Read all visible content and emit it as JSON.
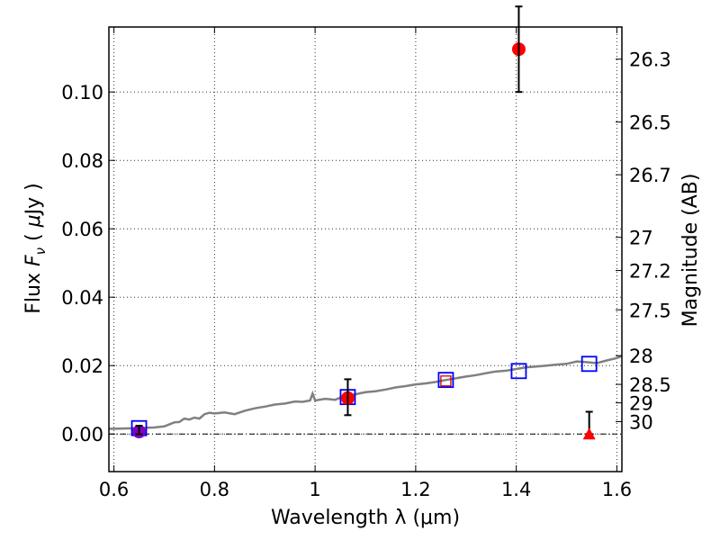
{
  "chart_data": {
    "type": "scatter",
    "title": "",
    "xlabel": "Wavelength  λ (μm)",
    "ylabel": "Flux  F_ν  ( μJy )",
    "ylabel_parts": [
      "Flux ",
      "F",
      "ν",
      " ( ",
      "μ",
      "Jy )"
    ],
    "y2label": "Magnitude (AB)",
    "xlim": [
      0.59,
      1.61
    ],
    "ylim": [
      -0.011,
      0.119
    ],
    "grid": true,
    "x_ticks": [
      {
        "value": 0.6,
        "label": "0.6"
      },
      {
        "value": 0.8,
        "label": "0.8"
      },
      {
        "value": 1.0,
        "label": "1"
      },
      {
        "value": 1.2,
        "label": "1.2"
      },
      {
        "value": 1.4,
        "label": "1.4"
      },
      {
        "value": 1.6,
        "label": "1.6"
      }
    ],
    "y_ticks": [
      {
        "value": 0.0,
        "label": "0.00"
      },
      {
        "value": 0.02,
        "label": "0.02"
      },
      {
        "value": 0.04,
        "label": "0.04"
      },
      {
        "value": 0.06,
        "label": "0.06"
      },
      {
        "value": 0.08,
        "label": "0.08"
      },
      {
        "value": 0.1,
        "label": "0.10"
      }
    ],
    "y2_ticks": [
      {
        "label": "26.3",
        "flux": 0.1096
      },
      {
        "label": "26.5",
        "flux": 0.0912
      },
      {
        "label": "26.7",
        "flux": 0.0758
      },
      {
        "label": "27",
        "flux": 0.0575
      },
      {
        "label": "27.2",
        "flux": 0.0478
      },
      {
        "label": "27.5",
        "flux": 0.0363
      },
      {
        "label": "28",
        "flux": 0.0229
      },
      {
        "label": "28.5",
        "flux": 0.0145
      },
      {
        "label": "29",
        "flux": 0.0091
      },
      {
        "label": "30",
        "flux": 0.0036
      }
    ],
    "zero_line": 0.0,
    "series": [
      {
        "kind": "line",
        "color": "#808080",
        "x": [
          0.59,
          0.62,
          0.64,
          0.66,
          0.68,
          0.7,
          0.71,
          0.72,
          0.73,
          0.74,
          0.75,
          0.76,
          0.77,
          0.78,
          0.79,
          0.8,
          0.82,
          0.84,
          0.86,
          0.88,
          0.9,
          0.92,
          0.94,
          0.96,
          0.975,
          0.99,
          0.995,
          1.0,
          1.02,
          1.04,
          1.06,
          1.08,
          1.1,
          1.12,
          1.14,
          1.16,
          1.18,
          1.2,
          1.22,
          1.24,
          1.26,
          1.28,
          1.3,
          1.32,
          1.34,
          1.36,
          1.38,
          1.4,
          1.42,
          1.44,
          1.46,
          1.48,
          1.5,
          1.52,
          1.54,
          1.56,
          1.58,
          1.6,
          1.61
        ],
        "y": [
          0.0015,
          0.0016,
          0.0017,
          0.0018,
          0.0019,
          0.0022,
          0.0028,
          0.0034,
          0.0035,
          0.0045,
          0.0042,
          0.0048,
          0.0045,
          0.0058,
          0.0062,
          0.006,
          0.0063,
          0.0058,
          0.0068,
          0.0075,
          0.008,
          0.0086,
          0.0089,
          0.0095,
          0.0094,
          0.0098,
          0.0118,
          0.0098,
          0.0103,
          0.01,
          0.0112,
          0.0116,
          0.0122,
          0.0125,
          0.013,
          0.0136,
          0.014,
          0.0145,
          0.0148,
          0.0152,
          0.0158,
          0.0163,
          0.0168,
          0.0172,
          0.0178,
          0.0183,
          0.0185,
          0.019,
          0.0195,
          0.0197,
          0.02,
          0.0203,
          0.0205,
          0.0212,
          0.021,
          0.0207,
          0.0215,
          0.0222,
          0.0228
        ]
      },
      {
        "kind": "squares",
        "color": "#0000ff",
        "x": [
          0.65,
          1.065,
          1.26,
          1.405,
          1.545
        ],
        "y": [
          0.0017,
          0.0108,
          0.0158,
          0.0184,
          0.0205
        ]
      },
      {
        "kind": "small-square",
        "color": "#cc0000",
        "x": [
          1.26
        ],
        "y": [
          0.0155
        ]
      },
      {
        "kind": "points",
        "color": "#ff0000",
        "x": [
          1.065,
          1.405
        ],
        "y": [
          0.0105,
          0.1125
        ],
        "yerr_low": [
          0.005,
          0.0125
        ],
        "yerr_high": [
          0.0055,
          0.0125
        ]
      },
      {
        "kind": "point",
        "color": "#8000c0",
        "x": [
          0.65
        ],
        "y": [
          0.0007
        ],
        "yerr_low": [
          0.0008
        ],
        "yerr_high": [
          0.0017
        ]
      },
      {
        "kind": "upper-limit",
        "color": "#ff0000",
        "x": [
          1.545
        ],
        "y": [
          0.0
        ],
        "yerr_high": [
          0.0065
        ]
      }
    ]
  }
}
